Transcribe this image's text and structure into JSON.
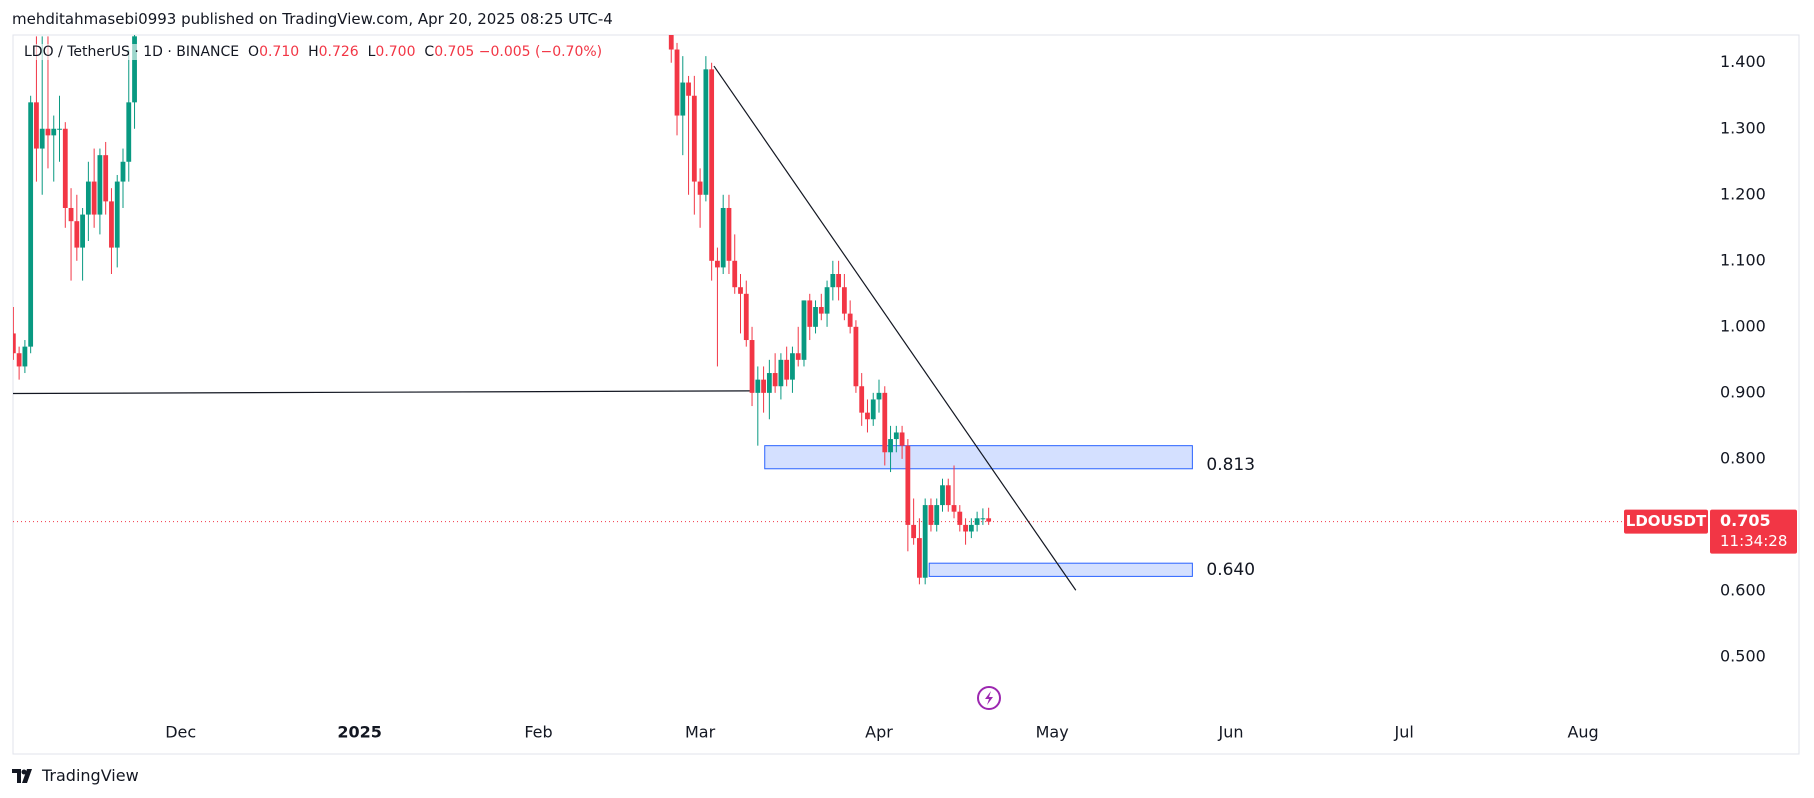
{
  "chart_data": {
    "type": "candlestick",
    "attribution": "mehditahmasebi0993 published on TradingView.com, Apr 20, 2025 08:25 UTC-4",
    "symbol": "LDO / TetherUS · 1D · BINANCE",
    "ohlc_legend": [
      {
        "key": "O",
        "text": "0.710"
      },
      {
        "key": "H",
        "text": "0.726"
      },
      {
        "key": "L",
        "text": "0.700"
      },
      {
        "key": "C",
        "text": "0.705"
      }
    ],
    "change": "−0.005 (−0.70%)",
    "brand": "TradingView",
    "up_color": "#089981",
    "down_color": "#f23645",
    "x": [
      1,
      2,
      3,
      4,
      5,
      6,
      7,
      8,
      9,
      10,
      11,
      12,
      13,
      14,
      15,
      16,
      17,
      18,
      19,
      20,
      21,
      22,
      115,
      116,
      117,
      118,
      119,
      120,
      121,
      122,
      123,
      124,
      125,
      126,
      127,
      128,
      129,
      130,
      131,
      132,
      133,
      134,
      135,
      136,
      137,
      138,
      139,
      140,
      141,
      142,
      143,
      144,
      145,
      146,
      147,
      148,
      149,
      150,
      151,
      152,
      153,
      154,
      155,
      156,
      157,
      158,
      159,
      160,
      161,
      162,
      163,
      164,
      165,
      166,
      167,
      168,
      169,
      170
    ],
    "open": [
      0.99,
      0.96,
      0.94,
      0.97,
      1.34,
      1.27,
      1.3,
      1.29,
      1.3,
      1.3,
      1.18,
      1.16,
      1.12,
      1.17,
      1.22,
      1.17,
      1.26,
      1.19,
      1.12,
      1.22,
      1.25,
      1.34,
      1.46,
      1.42,
      1.32,
      1.37,
      1.35,
      1.22,
      1.2,
      1.39,
      1.1,
      1.09,
      1.18,
      1.1,
      1.06,
      1.05,
      0.98,
      0.9,
      0.92,
      0.9,
      0.93,
      0.91,
      0.95,
      0.92,
      0.96,
      0.95,
      1.04,
      1.0,
      1.03,
      1.02,
      1.06,
      1.08,
      1.06,
      1.02,
      1.0,
      0.91,
      0.87,
      0.86,
      0.89,
      0.9,
      0.81,
      0.83,
      0.84,
      0.82,
      0.7,
      0.68,
      0.62,
      0.73,
      0.7,
      0.73,
      0.76,
      0.73,
      0.72,
      0.7,
      0.69,
      0.7,
      0.71,
      0.71
    ],
    "high": [
      1.03,
      0.97,
      0.98,
      1.35,
      1.44,
      1.44,
      1.44,
      1.32,
      1.35,
      1.31,
      1.21,
      1.2,
      1.18,
      1.25,
      1.27,
      1.27,
      1.28,
      1.21,
      1.23,
      1.27,
      1.42,
      1.45,
      1.5,
      1.43,
      1.41,
      1.38,
      1.38,
      1.24,
      1.41,
      1.4,
      1.12,
      1.2,
      1.2,
      1.14,
      1.08,
      1.07,
      1.0,
      0.94,
      0.94,
      0.95,
      0.96,
      0.96,
      0.97,
      0.97,
      1.0,
      1.04,
      1.05,
      1.04,
      1.05,
      1.07,
      1.1,
      1.1,
      1.08,
      1.04,
      1.01,
      0.93,
      0.89,
      0.9,
      0.92,
      0.91,
      0.85,
      0.85,
      0.85,
      0.83,
      0.74,
      0.71,
      0.74,
      0.74,
      0.74,
      0.77,
      0.77,
      0.79,
      0.73,
      0.71,
      0.71,
      0.72,
      0.725,
      0.726
    ],
    "low": [
      0.95,
      0.92,
      0.93,
      0.96,
      1.22,
      1.2,
      1.24,
      1.22,
      1.25,
      1.15,
      1.07,
      1.1,
      1.07,
      1.13,
      1.15,
      1.14,
      1.17,
      1.08,
      1.09,
      1.18,
      1.22,
      1.3,
      1.4,
      1.29,
      1.26,
      1.2,
      1.17,
      1.15,
      1.19,
      1.07,
      0.94,
      1.08,
      1.08,
      1.05,
      0.99,
      0.97,
      0.88,
      0.82,
      0.87,
      0.86,
      0.9,
      0.89,
      0.91,
      0.9,
      0.94,
      0.94,
      0.98,
      0.99,
      1.01,
      1.0,
      1.04,
      1.04,
      1.01,
      0.99,
      0.9,
      0.85,
      0.84,
      0.85,
      0.87,
      0.79,
      0.78,
      0.81,
      0.8,
      0.66,
      0.67,
      0.61,
      0.61,
      0.69,
      0.69,
      0.72,
      0.72,
      0.71,
      0.69,
      0.67,
      0.68,
      0.69,
      0.7,
      0.7
    ],
    "close": [
      0.96,
      0.94,
      0.97,
      1.34,
      1.27,
      1.3,
      1.29,
      1.3,
      1.3,
      1.18,
      1.16,
      1.12,
      1.17,
      1.22,
      1.17,
      1.26,
      1.19,
      1.12,
      1.22,
      1.25,
      1.34,
      1.44,
      1.42,
      1.32,
      1.37,
      1.35,
      1.22,
      1.2,
      1.39,
      1.1,
      1.09,
      1.18,
      1.1,
      1.06,
      1.05,
      0.98,
      0.9,
      0.92,
      0.9,
      0.93,
      0.91,
      0.95,
      0.92,
      0.96,
      0.95,
      1.04,
      1.0,
      1.03,
      1.02,
      1.06,
      1.08,
      1.06,
      1.02,
      1.0,
      0.91,
      0.87,
      0.86,
      0.89,
      0.9,
      0.81,
      0.83,
      0.84,
      0.82,
      0.7,
      0.68,
      0.62,
      0.73,
      0.7,
      0.73,
      0.76,
      0.73,
      0.72,
      0.7,
      0.69,
      0.7,
      0.71,
      0.71,
      0.705
    ],
    "xlim": [
      0.94,
      294.3
    ],
    "xticks": [
      {
        "value": 30,
        "label": "Dec"
      },
      {
        "value": 61,
        "label": "2025"
      },
      {
        "value": 92,
        "label": "Feb"
      },
      {
        "value": 120,
        "label": "Mar"
      },
      {
        "value": 151,
        "label": "Apr"
      },
      {
        "value": 181,
        "label": "May"
      },
      {
        "value": 212,
        "label": "Jun"
      },
      {
        "value": 242,
        "label": "Jul"
      },
      {
        "value": 273,
        "label": "Aug"
      }
    ],
    "ylim": [
      0.353,
      1.442
    ],
    "yticks": [
      {
        "value": 0.5,
        "label": "0.500"
      },
      {
        "value": 0.6,
        "label": "0.600"
      },
      {
        "value": 0.7,
        "label": "0.700"
      },
      {
        "value": 0.8,
        "label": "0.800"
      },
      {
        "value": 0.9,
        "label": "0.900"
      },
      {
        "value": 1.0,
        "label": "1.000"
      },
      {
        "value": 1.1,
        "label": "1.100"
      },
      {
        "value": 1.2,
        "label": "1.200"
      },
      {
        "value": 1.3,
        "label": "1.300"
      },
      {
        "value": 1.4,
        "label": "1.400"
      }
    ],
    "hidden_yticks": [
      0.7
    ],
    "lines": [
      {
        "x": [
          0.94,
          128.8
        ],
        "y": [
          0.899,
          0.903
        ]
      },
      {
        "x": [
          122.4,
          185.1
        ],
        "y": [
          1.395,
          0.601
        ]
      }
    ],
    "zones": [
      {
        "x": [
          131.2,
          205.3
        ],
        "y": [
          0.785,
          0.82
        ],
        "label": "0.813"
      },
      {
        "x": [
          159.7,
          205.3
        ],
        "y": [
          0.622,
          0.642
        ],
        "label": "0.640"
      }
    ],
    "last_price": {
      "value": 0.705,
      "symbol": "LDOUSDT",
      "countdown": "11:34:28"
    }
  }
}
